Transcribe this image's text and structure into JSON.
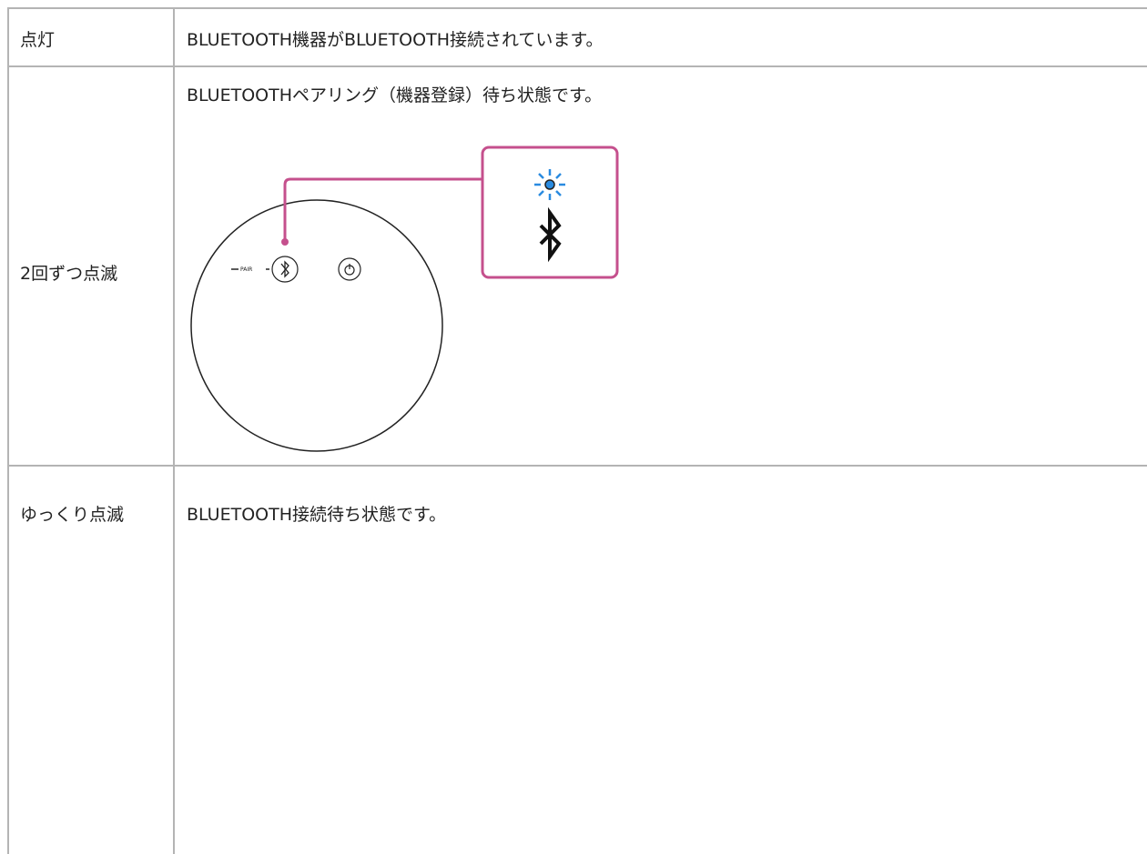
{
  "table": {
    "rows": [
      [
        "点灯",
        "BLUETOOTH機器がBLUETOOTH接続されています。"
      ],
      [
        "2回ずつ点滅",
        "BLUETOOTHペアリング（機器登録）待ち状態です。"
      ],
      [
        "ゆっくり点滅",
        "BLUETOOTH接続待ち状態です。"
      ]
    ]
  },
  "diagram": {
    "button_label": "PAIR"
  }
}
